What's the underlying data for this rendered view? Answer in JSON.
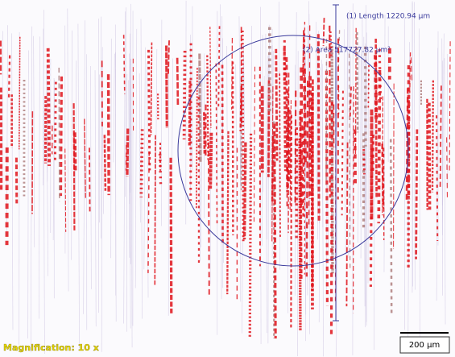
{
  "annotations": [
    {
      "label": "(1) Length 1220.94 µm"
    },
    {
      "label": "(2) Area 517727.82 µm²"
    }
  ],
  "magnification": "Magnification: 10 x",
  "scale_bar": "200 µm"
}
